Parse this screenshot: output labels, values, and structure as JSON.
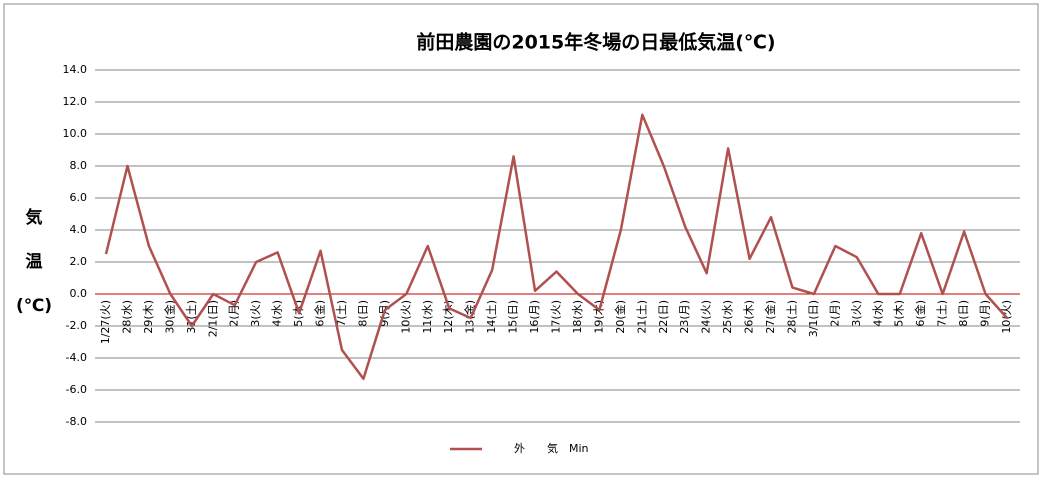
{
  "chart_data": {
    "type": "line",
    "title": "前田農園の2015年冬場の日最低気温(℃)",
    "y_label_lines": [
      "気",
      "温",
      "(℃)"
    ],
    "categories": [
      "1/27(火)",
      "28(水)",
      "29(木)",
      "30(金)",
      "31(土)",
      "2/1(日)",
      "2(月)",
      "3(火)",
      "4(水)",
      "5(木)",
      "6(金)",
      "7(土)",
      "8(日)",
      "9(月)",
      "10(火)",
      "11(水)",
      "12(木)",
      "13(金)",
      "14(土)",
      "15(日)",
      "16(月)",
      "17(火)",
      "18(水)",
      "19(木)",
      "20(金)",
      "21(土)",
      "22(日)",
      "23(月)",
      "24(火)",
      "25(水)",
      "26(木)",
      "27(金)",
      "28(土)",
      "3/1(日)",
      "2(月)",
      "3(火)",
      "4(水)",
      "5(木)",
      "6(金)",
      "7(土)",
      "8(日)",
      "9(月)",
      "10(火)"
    ],
    "series": [
      {
        "name": "外　　気　Min",
        "color": "#b0504f",
        "values": [
          2.5,
          8.0,
          3.0,
          0.0,
          -2.0,
          0.0,
          -0.7,
          2.0,
          2.6,
          -1.2,
          2.7,
          -3.5,
          -5.3,
          -1.0,
          0.0,
          3.0,
          -0.9,
          -1.5,
          1.5,
          8.6,
          0.2,
          1.4,
          0.0,
          -1.0,
          4.0,
          11.2,
          8.0,
          4.2,
          1.3,
          9.1,
          2.2,
          4.8,
          0.4,
          0.0,
          3.0,
          2.3,
          0.0,
          0.0,
          3.8,
          0.0,
          3.9,
          0.0,
          -1.5
        ]
      }
    ],
    "ylim": [
      -8,
      14
    ],
    "yticks": [
      {
        "value": -8,
        "label": "-8.0"
      },
      {
        "value": -6,
        "label": "-6.0"
      },
      {
        "value": -4,
        "label": "-4.0"
      },
      {
        "value": -2,
        "label": "-2.0"
      },
      {
        "value": 0,
        "label": "0.0"
      },
      {
        "value": 2,
        "label": "2.0"
      },
      {
        "value": 4,
        "label": "4.0"
      },
      {
        "value": 6,
        "label": "6.0"
      },
      {
        "value": 8,
        "label": "8.0"
      },
      {
        "value": 10,
        "label": "10.0"
      },
      {
        "value": 12,
        "label": "12.0"
      },
      {
        "value": 14,
        "label": "14.0"
      }
    ],
    "grid": true,
    "grid_color": "#868686",
    "zero_line_color": "#c00000",
    "legend": "bottom"
  }
}
